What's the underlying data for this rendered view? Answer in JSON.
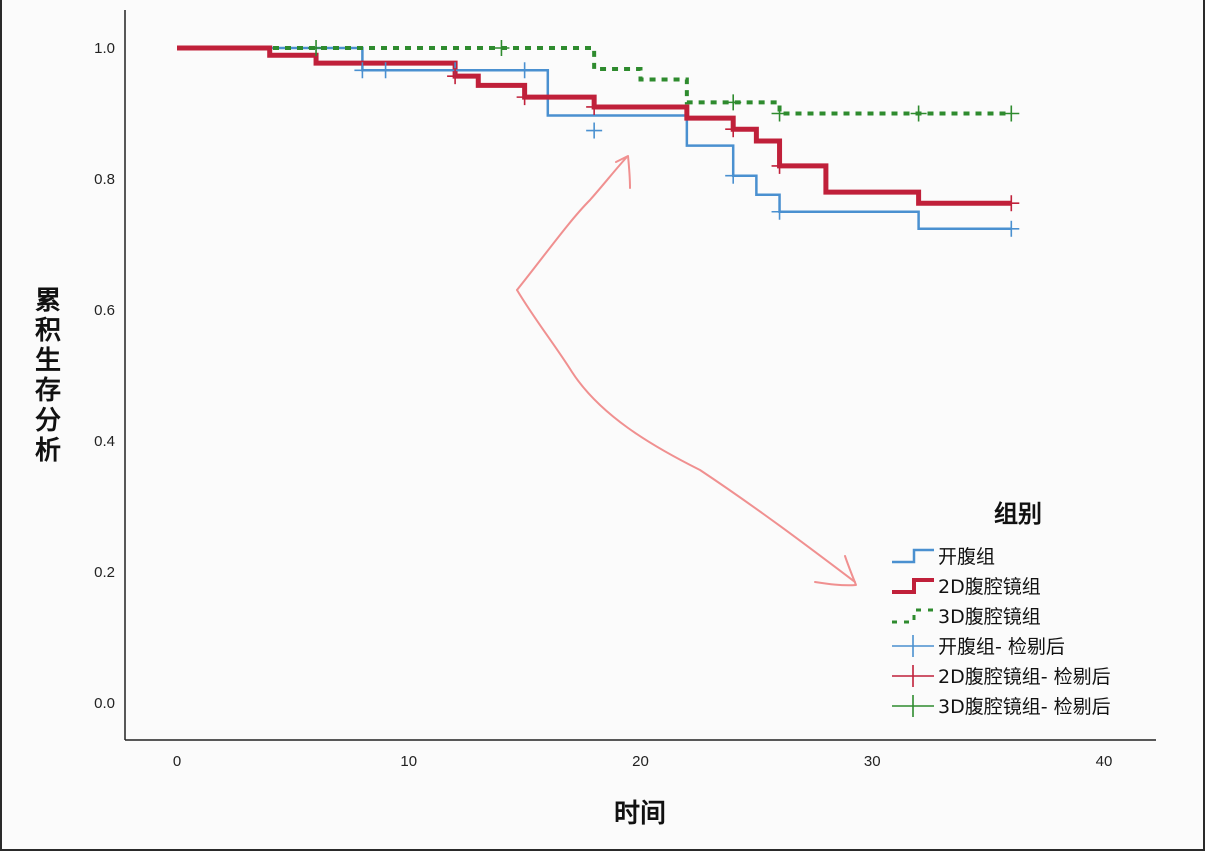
{
  "chart_data": {
    "type": "line",
    "subtype": "kaplan-meier-step",
    "xlabel": "时间",
    "ylabel": "累积生存分析",
    "xlim": [
      0,
      40
    ],
    "ylim": [
      0.0,
      1.0
    ],
    "xticks": [
      "0",
      "10",
      "20",
      "30",
      "40"
    ],
    "yticks": [
      "0.0",
      "0.2",
      "0.4",
      "0.6",
      "0.8",
      "1.0"
    ],
    "grid": false,
    "legend": {
      "title": "组别",
      "position": "bottom-right",
      "entries": [
        {
          "label": "开腹组",
          "kind": "line",
          "series": 0
        },
        {
          "label": "2D腹腔镜组",
          "kind": "line",
          "series": 1
        },
        {
          "label": "3D腹腔镜组",
          "kind": "line",
          "series": 2
        },
        {
          "label": "开腹组- 检剔后",
          "kind": "censor",
          "series": 0
        },
        {
          "label": "2D腹腔镜组- 检剔后",
          "kind": "censor",
          "series": 1
        },
        {
          "label": "3D腹腔镜组- 检剔后",
          "kind": "censor",
          "series": 2
        }
      ]
    },
    "series": [
      {
        "name": "开腹组",
        "color": "#4a90d0",
        "style": "solid",
        "steps": [
          [
            0,
            1.0
          ],
          [
            8,
            0.966
          ],
          [
            16,
            0.897
          ],
          [
            22,
            0.851
          ],
          [
            24,
            0.805
          ],
          [
            25,
            0.776
          ],
          [
            26,
            0.75
          ],
          [
            32,
            0.724
          ],
          [
            36,
            0.724
          ]
        ],
        "censored": [
          [
            8,
            0.966
          ],
          [
            9,
            0.966
          ],
          [
            12,
            0.966
          ],
          [
            15,
            0.966
          ],
          [
            18,
            0.874
          ],
          [
            24,
            0.805
          ],
          [
            26,
            0.75
          ],
          [
            36,
            0.724
          ]
        ]
      },
      {
        "name": "2D腹腔镜组",
        "color": "#c0203a",
        "style": "solid-thick",
        "steps": [
          [
            0,
            1.0
          ],
          [
            4,
            0.989
          ],
          [
            6,
            0.977
          ],
          [
            12,
            0.957
          ],
          [
            13,
            0.943
          ],
          [
            15,
            0.925
          ],
          [
            18,
            0.91
          ],
          [
            22,
            0.893
          ],
          [
            24,
            0.876
          ],
          [
            25,
            0.858
          ],
          [
            26,
            0.82
          ],
          [
            28,
            0.78
          ],
          [
            32,
            0.763
          ],
          [
            36,
            0.763
          ]
        ],
        "censored": [
          [
            12,
            0.957
          ],
          [
            15,
            0.925
          ],
          [
            18,
            0.91
          ],
          [
            24,
            0.876
          ],
          [
            26,
            0.82
          ],
          [
            36,
            0.763
          ]
        ]
      },
      {
        "name": "3D腹腔镜组",
        "color": "#2e8b2e",
        "style": "dashed",
        "steps": [
          [
            0,
            1.0
          ],
          [
            18,
            0.968
          ],
          [
            20,
            0.952
          ],
          [
            22,
            0.917
          ],
          [
            26,
            0.9
          ],
          [
            36,
            0.9
          ]
        ],
        "censored": [
          [
            6,
            1.0
          ],
          [
            14,
            1.0
          ],
          [
            24,
            0.917
          ],
          [
            26,
            0.9
          ],
          [
            32,
            0.9
          ],
          [
            36,
            0.9
          ]
        ]
      }
    ],
    "annotation": {
      "type": "hand-drawn double-headed arrow",
      "color": "#f08080"
    }
  }
}
